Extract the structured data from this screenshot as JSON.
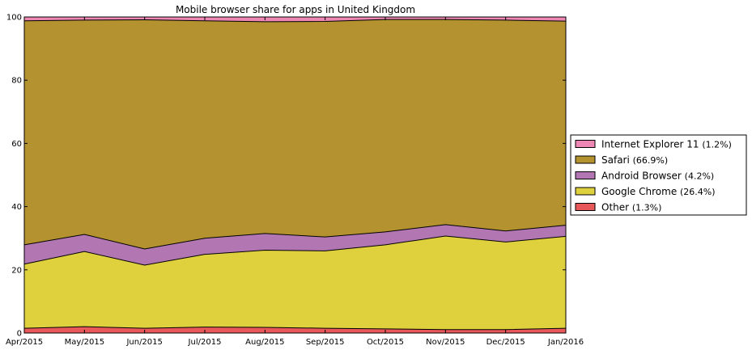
{
  "chart_data": {
    "type": "area",
    "title": "Mobile browser share for apps in United Kingdom",
    "xlabel": "",
    "ylabel": "",
    "ylim": [
      0,
      100
    ],
    "yticks": [
      0,
      20,
      40,
      60,
      80,
      100
    ],
    "grid": false,
    "legend_position": "right",
    "x": [
      "Apr/2015",
      "May/2015",
      "Jun/2015",
      "Jul/2015",
      "Aug/2015",
      "Sep/2015",
      "Oct/2015",
      "Nov/2015",
      "Dec/2015",
      "Jan/2016"
    ],
    "series": [
      {
        "name": "Other",
        "share": "(1.3%)",
        "color": "#e8585a",
        "values": [
          1.5,
          2.0,
          1.5,
          1.9,
          1.8,
          1.5,
          1.3,
          1.1,
          1.1,
          1.5
        ]
      },
      {
        "name": "Google Chrome",
        "share": "(26.4%)",
        "color": "#dfd03e",
        "values": [
          20.3,
          23.8,
          20.0,
          23.0,
          24.4,
          24.5,
          26.6,
          29.6,
          27.7,
          29.1
        ]
      },
      {
        "name": "Android Browser",
        "share": "(4.2%)",
        "color": "#b277b3",
        "values": [
          6.1,
          5.4,
          5.1,
          5.1,
          5.3,
          4.4,
          4.1,
          3.6,
          3.5,
          3.5
        ]
      },
      {
        "name": "Safari",
        "share": "(66.9%)",
        "color": "#b3922f",
        "values": [
          70.9,
          67.8,
          72.5,
          68.8,
          67.0,
          68.2,
          67.2,
          64.9,
          66.7,
          64.6
        ]
      },
      {
        "name": "Internet Explorer 11",
        "share": "(1.2%)",
        "color": "#ee87b4",
        "values": [
          1.2,
          1.0,
          0.9,
          1.2,
          1.5,
          1.4,
          0.8,
          0.8,
          1.0,
          1.3
        ]
      }
    ]
  }
}
